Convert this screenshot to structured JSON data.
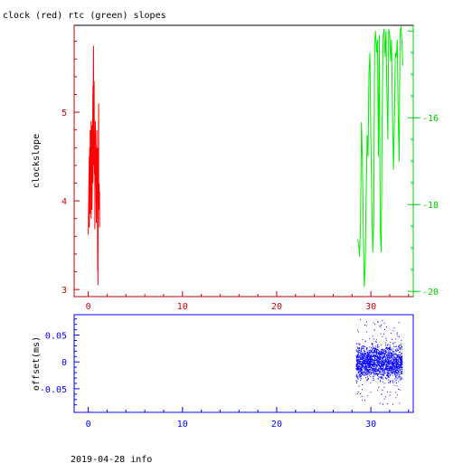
{
  "title": "clock (red) rtc (green) slopes",
  "footer": "2019-04-28 info",
  "chart_data": [
    {
      "type": "line",
      "ylabel": "clockslope",
      "xlim": [
        -1.5,
        34.5
      ],
      "ylim": [
        2.92,
        5.98
      ],
      "y2lim": [
        -20.12,
        -13.87
      ],
      "x_ticks": [
        "0",
        "10",
        "20",
        "30"
      ],
      "x_tick_values": [
        0,
        10,
        20,
        30
      ],
      "y_ticks": [
        "3",
        "4",
        "5"
      ],
      "y_tick_values": [
        3,
        4,
        5
      ],
      "y2_ticks": [
        "-16",
        "-18",
        "-20"
      ],
      "y2_tick_values": [
        -16,
        -18,
        -20
      ],
      "colors": {
        "frame": "#000000",
        "left_axis": "#cc0000",
        "right_axis": "#00cc00",
        "bottom_axis": "#cc0000"
      },
      "series": [
        {
          "name": "clock",
          "color": "#ff0000",
          "axis": "left",
          "x": [
            0.0,
            0.1,
            0.1,
            0.15,
            0.2,
            0.2,
            0.25,
            0.3,
            0.3,
            0.35,
            0.4,
            0.4,
            0.45,
            0.5,
            0.5,
            0.55,
            0.6,
            0.6,
            0.62,
            0.65,
            0.7,
            0.7,
            0.75,
            0.8,
            0.8,
            0.85,
            0.9,
            0.9,
            0.95,
            1.0,
            1.0,
            1.02,
            1.05,
            1.1,
            1.1,
            1.15,
            1.2,
            1.2
          ],
          "y": [
            3.62,
            4.5,
            3.7,
            4.6,
            3.85,
            4.8,
            4.1,
            4.9,
            3.8,
            4.4,
            4.85,
            3.9,
            4.7,
            5.3,
            4.2,
            5.75,
            4.4,
            5.0,
            5.35,
            4.3,
            4.75,
            3.68,
            4.9,
            4.2,
            4.6,
            3.75,
            4.8,
            4.0,
            4.4,
            3.2,
            4.6,
            3.05,
            4.3,
            5.1,
            3.9,
            4.2,
            3.7,
            4.1
          ]
        },
        {
          "name": "rtc",
          "color": "#00ee00",
          "axis": "right",
          "x": [
            28.6,
            28.7,
            28.8,
            28.9,
            29.0,
            29.1,
            29.2,
            29.3,
            29.4,
            29.5,
            29.6,
            29.7,
            29.8,
            29.9,
            30.0,
            30.1,
            30.2,
            30.3,
            30.4,
            30.5,
            30.6,
            30.7,
            30.8,
            30.9,
            31.0,
            31.1,
            31.2,
            31.3,
            31.4,
            31.5,
            31.6,
            31.7,
            31.8,
            31.9,
            32.0,
            32.1,
            32.2,
            32.3,
            32.4,
            32.5,
            32.6,
            32.7,
            32.8,
            32.9,
            33.0,
            33.1,
            33.2,
            33.3,
            33.4
          ],
          "y": [
            -18.8,
            -18.9,
            -19.2,
            -18.4,
            -16.1,
            -17.0,
            -18.6,
            -19.9,
            -19.4,
            -17.8,
            -16.4,
            -16.9,
            -15.0,
            -14.5,
            -16.5,
            -18.0,
            -19.1,
            -18.4,
            -14.3,
            -14.0,
            -14.5,
            -14.2,
            -16.9,
            -14.1,
            -18.6,
            -19.1,
            -16.0,
            -14.1,
            -13.95,
            -14.6,
            -14.0,
            -15.3,
            -16.5,
            -13.95,
            -14.1,
            -14.7,
            -14.2,
            -16.0,
            -17.2,
            -16.0,
            -14.5,
            -14.6,
            -14.2,
            -15.9,
            -17.0,
            -14.0,
            -13.9,
            -14.3,
            -14.8
          ]
        }
      ]
    },
    {
      "type": "scatter",
      "ylabel": "offset(ms)",
      "xlim": [
        -1.5,
        34.5
      ],
      "ylim": [
        -0.094,
        0.088
      ],
      "x_ticks": [
        "0",
        "10",
        "20",
        "30"
      ],
      "x_tick_values": [
        0,
        10,
        20,
        30
      ],
      "y_ticks": [
        "0.05",
        "0",
        "-0.05"
      ],
      "y_tick_values": [
        0.05,
        0,
        -0.05
      ],
      "colors": {
        "frame": "#0000ff",
        "points": "#0000ff"
      },
      "series": [
        {
          "name": "offset",
          "color": "#0000ff",
          "x_range": [
            28.4,
            33.3
          ],
          "y_core_spread": 0.02,
          "y_outer_spread": 0.08,
          "point_count": 1800
        }
      ]
    }
  ]
}
